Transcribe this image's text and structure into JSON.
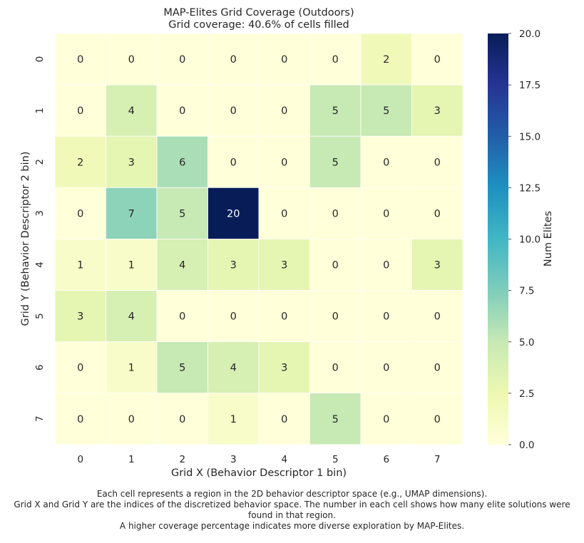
{
  "chart_data": {
    "type": "heatmap",
    "title": "MAP-Elites Grid Coverage (Outdoors)",
    "subtitle": "Grid coverage: 40.6% of cells filled",
    "xlabel": "Grid X (Behavior Descriptor 1 bin)",
    "ylabel": "Grid Y (Behavior Descriptor 2 bin)",
    "x_ticks": [
      "0",
      "1",
      "2",
      "3",
      "4",
      "5",
      "6",
      "7"
    ],
    "y_ticks": [
      "0",
      "1",
      "2",
      "3",
      "4",
      "5",
      "6",
      "7"
    ],
    "values": [
      [
        0,
        0,
        0,
        0,
        0,
        0,
        2,
        0
      ],
      [
        0,
        4,
        0,
        0,
        0,
        5,
        5,
        3
      ],
      [
        2,
        3,
        6,
        0,
        0,
        5,
        0,
        0
      ],
      [
        0,
        7,
        5,
        20,
        0,
        0,
        0,
        0
      ],
      [
        1,
        1,
        4,
        3,
        3,
        0,
        0,
        3
      ],
      [
        3,
        4,
        0,
        0,
        0,
        0,
        0,
        0
      ],
      [
        0,
        1,
        5,
        4,
        3,
        0,
        0,
        0
      ],
      [
        0,
        0,
        0,
        1,
        0,
        5,
        0,
        0
      ]
    ],
    "colorbar": {
      "label": "Num Elites",
      "range": [
        0,
        20
      ],
      "ticks": [
        "0.0",
        "2.5",
        "5.0",
        "7.5",
        "10.0",
        "12.5",
        "15.0",
        "17.5",
        "20.0"
      ],
      "colormap": "YlGnBu"
    },
    "grid": false
  },
  "caption": {
    "line1": "Each cell represents a region in the 2D behavior descriptor space (e.g., UMAP dimensions).",
    "line2": "Grid X and Grid Y are the indices of the discretized behavior space. The number in each cell shows how many elite solutions were",
    "line3": "found in that region.",
    "line4": "A higher coverage percentage indicates more diverse exploration by MAP-Elites."
  }
}
